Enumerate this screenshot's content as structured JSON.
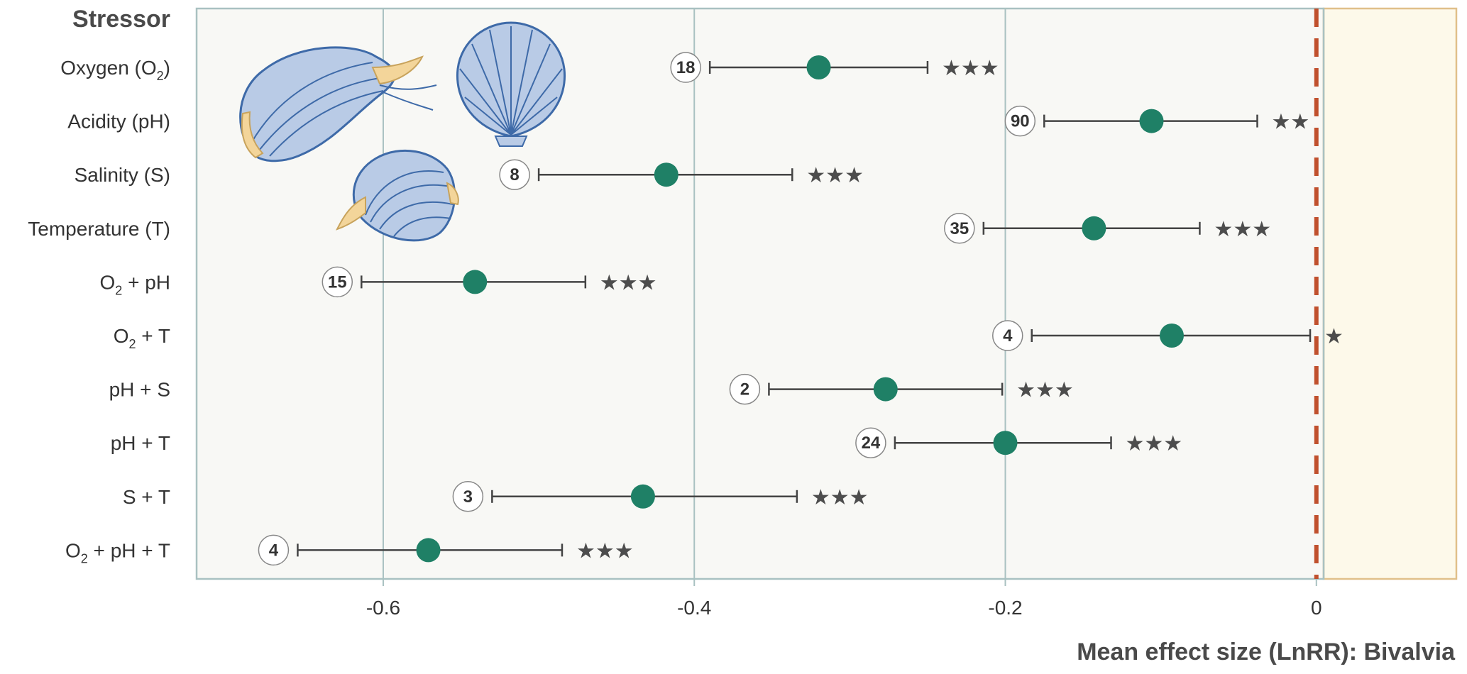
{
  "chart_data": {
    "type": "forest",
    "ylabel": "Stressor",
    "xlabel": "Mean effect size (LnRR): Bivalvia",
    "xlim": [
      -0.72,
      0.09
    ],
    "xticks": [
      {
        "value": -0.6,
        "label": "-0.6"
      },
      {
        "value": -0.4,
        "label": "-0.4"
      },
      {
        "value": -0.2,
        "label": "-0.2"
      },
      {
        "value": 0,
        "label": "0"
      }
    ],
    "grid": "vertical",
    "reference_line": {
      "value": 0,
      "style": "dashed",
      "color": "#c0502d"
    },
    "colors": {
      "point": "#1f8066",
      "error_bar": "#444444",
      "plot_background": "#f8f8f5",
      "positive_region": "#fdf9ea",
      "frame": "#a9c1c1",
      "positive_frame": "#e0c08a"
    },
    "rows": [
      {
        "label": "Oxygen (O",
        "sub": "2",
        "label_after": ")",
        "n": "18",
        "mean": -0.32,
        "lower": -0.39,
        "upper": -0.25,
        "stars": "★★★"
      },
      {
        "label": "Acidity (pH)",
        "sub": "",
        "label_after": "",
        "n": "90",
        "mean": -0.106,
        "lower": -0.175,
        "upper": -0.038,
        "stars": "★★"
      },
      {
        "label": "Salinity (S)",
        "sub": "",
        "label_after": "",
        "n": "8",
        "mean": -0.418,
        "lower": -0.5,
        "upper": -0.337,
        "stars": "★★★"
      },
      {
        "label": "Temperature (T)",
        "sub": "",
        "label_after": "",
        "n": "35",
        "mean": -0.143,
        "lower": -0.214,
        "upper": -0.075,
        "stars": "★★★"
      },
      {
        "label": "O",
        "sub": "2",
        "label_after": " + pH",
        "n": "15",
        "mean": -0.541,
        "lower": -0.614,
        "upper": -0.47,
        "stars": "★★★"
      },
      {
        "label": "O",
        "sub": "2",
        "label_after": " + T",
        "n": "4",
        "mean": -0.093,
        "lower": -0.183,
        "upper": -0.004,
        "stars": "★"
      },
      {
        "label": "pH + S",
        "sub": "",
        "label_after": "",
        "n": "2",
        "mean": -0.277,
        "lower": -0.352,
        "upper": -0.202,
        "stars": "★★★"
      },
      {
        "label": "pH + T",
        "sub": "",
        "label_after": "",
        "n": "24",
        "mean": -0.2,
        "lower": -0.271,
        "upper": -0.132,
        "stars": "★★★"
      },
      {
        "label": "S + T",
        "sub": "",
        "label_after": "",
        "n": "3",
        "mean": -0.433,
        "lower": -0.53,
        "upper": -0.334,
        "stars": "★★★"
      },
      {
        "label": "O",
        "sub": "2",
        "label_after": " + pH + T",
        "n": "4",
        "mean": -0.571,
        "lower": -0.655,
        "upper": -0.485,
        "stars": "★★★"
      }
    ],
    "illustrations": [
      "bivalve-shell-icon",
      "scallop-shell-icon",
      "clam-shell-icon"
    ]
  }
}
